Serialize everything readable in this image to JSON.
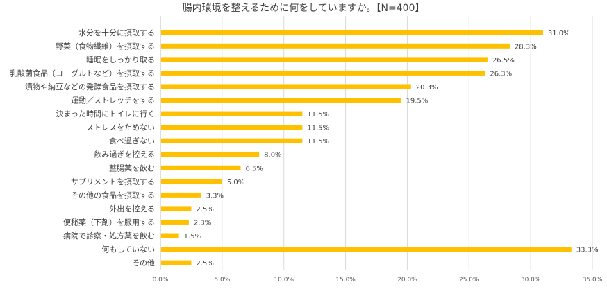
{
  "chart_data": {
    "type": "bar",
    "orientation": "horizontal",
    "title": "腸内環境を整えるために何をしていますか。【N=400】",
    "categories": [
      "水分を十分に摂取する",
      "野菜（食物繊維）を摂取する",
      "睡眠をしっかり取る",
      "乳酸菌食品（ヨーグルトなど）を摂取する",
      "漬物や納豆などの発酵食品を摂取する",
      "運動／ストレッチをする",
      "決まった時間にトイレに行く",
      "ストレスをためない",
      "食べ過ぎない",
      "飲み過ぎを控える",
      "整腸薬を飲む",
      "サプリメントを摂取する",
      "その他の食品を摂取する",
      "外出を控える",
      "便秘薬（下剤）を服用する",
      "病院で診察・処方薬を飲む",
      "何もしていない",
      "その他"
    ],
    "values": [
      31.0,
      28.3,
      26.5,
      26.3,
      20.3,
      19.5,
      11.5,
      11.5,
      11.5,
      8.0,
      6.5,
      5.0,
      3.3,
      2.5,
      2.3,
      1.5,
      33.3,
      2.5
    ],
    "value_labels": [
      "31.0%",
      "28.3%",
      "26.5%",
      "26.3%",
      "20.3%",
      "19.5%",
      "11.5%",
      "11.5%",
      "11.5%",
      "8.0%",
      "6.5%",
      "5.0%",
      "3.3%",
      "2.5%",
      "2.3%",
      "1.5%",
      "33.3%",
      "2.5%"
    ],
    "xlim": [
      0,
      35
    ],
    "xticks": [
      "0.0%",
      "5.0%",
      "10.0%",
      "15.0%",
      "20.0%",
      "25.0%",
      "30.0%",
      "35.0%"
    ],
    "grid": true,
    "legend": "none",
    "colors": {
      "bar": "#FFC000",
      "grid": "#D9D9D9",
      "axis": "#BFBFBF"
    }
  }
}
